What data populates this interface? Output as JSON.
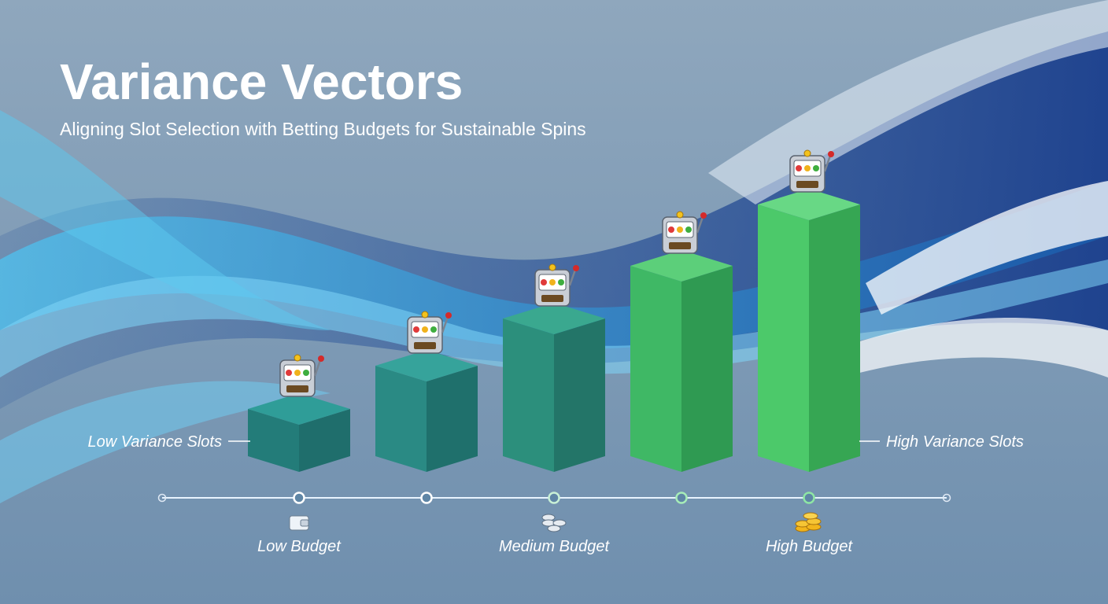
{
  "header": {
    "title": "Variance Vectors",
    "subtitle": "Aligning Slot Selection with Betting Budgets for Sustainable Spins"
  },
  "axis": {
    "left_label": "Low Variance Slots",
    "right_label": "High Variance Slots"
  },
  "budgets": [
    "Low Budget",
    "Medium Budget",
    "High Budget"
  ]
}
